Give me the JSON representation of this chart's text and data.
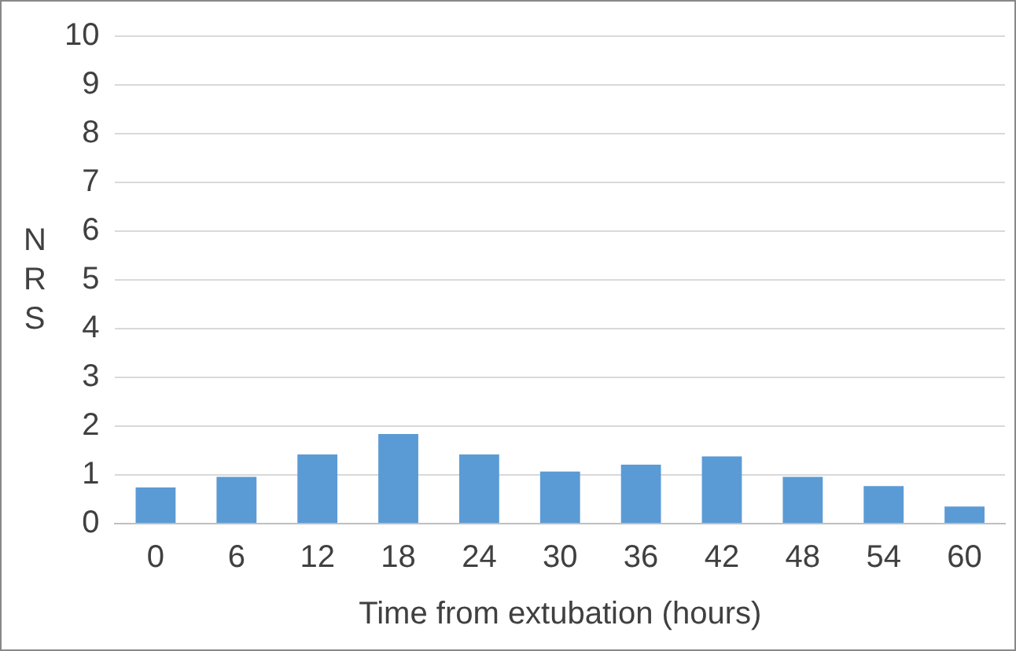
{
  "chart_data": {
    "type": "bar",
    "xlabel": "Time from extubation (hours)",
    "ylabel": "NRS",
    "categories": [
      "0",
      "6",
      "12",
      "18",
      "24",
      "30",
      "36",
      "42",
      "48",
      "54",
      "60"
    ],
    "values": [
      0.74,
      0.96,
      1.42,
      1.84,
      1.42,
      1.07,
      1.21,
      1.38,
      0.96,
      0.77,
      0.35
    ],
    "color": "#5b9bd5",
    "ylim": [
      0,
      10
    ],
    "yticks": [
      0,
      1,
      2,
      3,
      4,
      5,
      6,
      7,
      8,
      9,
      10
    ],
    "grid": "y",
    "legend": false
  }
}
